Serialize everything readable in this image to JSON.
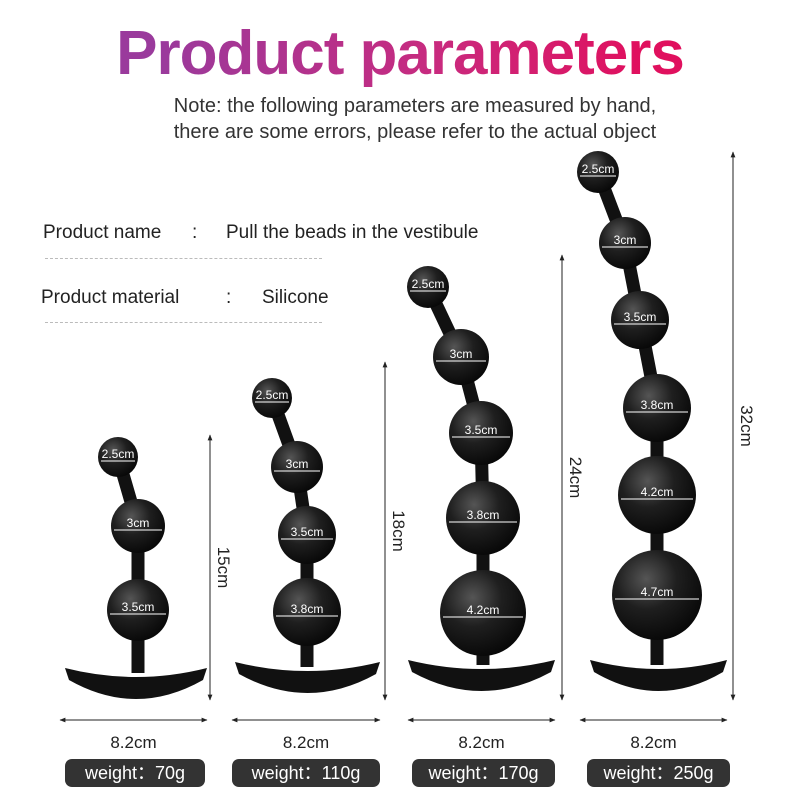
{
  "title": "Product parameters",
  "note": [
    "Note: the following parameters are measured by hand,",
    "there are some errors, please refer to the actual object"
  ],
  "specs": [
    {
      "label": "Product name",
      "sep": ":",
      "value": "Pull the beads in the vestibule"
    },
    {
      "label": "Product material",
      "sep": ":",
      "value": "Silicone"
    }
  ],
  "colors": {
    "title_start": "#9a3a9c",
    "title_end": "#e0105e",
    "product": "#1a1a1a",
    "weight_pill": "#333333"
  },
  "products": [
    {
      "beads": [
        "2.5cm",
        "3cm",
        "3.5cm"
      ],
      "length": "15cm",
      "width": "8.2cm",
      "weight": "weight：70g"
    },
    {
      "beads": [
        "2.5cm",
        "3cm",
        "3.5cm",
        "3.8cm"
      ],
      "length": "18cm",
      "width": "8.2cm",
      "weight": "weight：110g"
    },
    {
      "beads": [
        "2.5cm",
        "3cm",
        "3.5cm",
        "3.8cm",
        "4.2cm"
      ],
      "length": "24cm",
      "width": "8.2cm",
      "weight": "weight：170g"
    },
    {
      "beads": [
        "2.5cm",
        "3cm",
        "3.5cm",
        "3.8cm",
        "4.2cm",
        "4.7cm"
      ],
      "length": "32cm",
      "width": "8.2cm",
      "weight": "weight：250g"
    }
  ]
}
